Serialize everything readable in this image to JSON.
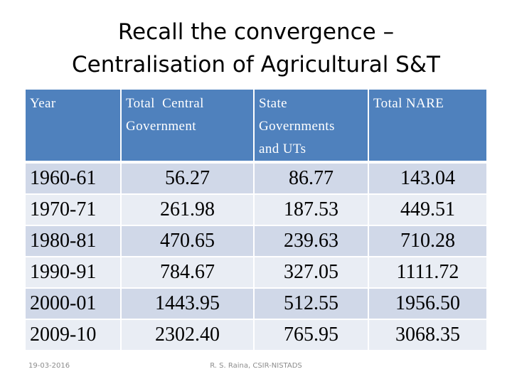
{
  "title": {
    "line1": "Recall the convergence –",
    "line2": "Centralisation of Agricultural S&T"
  },
  "table": {
    "headers": [
      [
        "Year"
      ],
      [
        "Total  Central",
        "Government"
      ],
      [
        "State",
        "Governments",
        "and UTs"
      ],
      [
        "Total NARE"
      ]
    ],
    "rows": [
      [
        "1960-61",
        "56.27",
        "86.77",
        "143.04"
      ],
      [
        "1970-71",
        "261.98",
        "187.53",
        "449.51"
      ],
      [
        "1980-81",
        "470.65",
        "239.63",
        "710.28"
      ],
      [
        "1990-91",
        "784.67",
        "327.05",
        "1111.72"
      ],
      [
        "2000-01",
        "1443.95",
        "512.55",
        "1956.50"
      ],
      [
        "2009-10",
        "2302.40",
        "765.95",
        "3068.35"
      ]
    ]
  },
  "footer": {
    "date": "19-03-2016",
    "credit": "R. S. Raina, CSIR-NISTADS"
  },
  "colors": {
    "header_bg": "#4f81bd",
    "row_odd": "#d0d8e8",
    "row_even": "#e9edf4"
  }
}
